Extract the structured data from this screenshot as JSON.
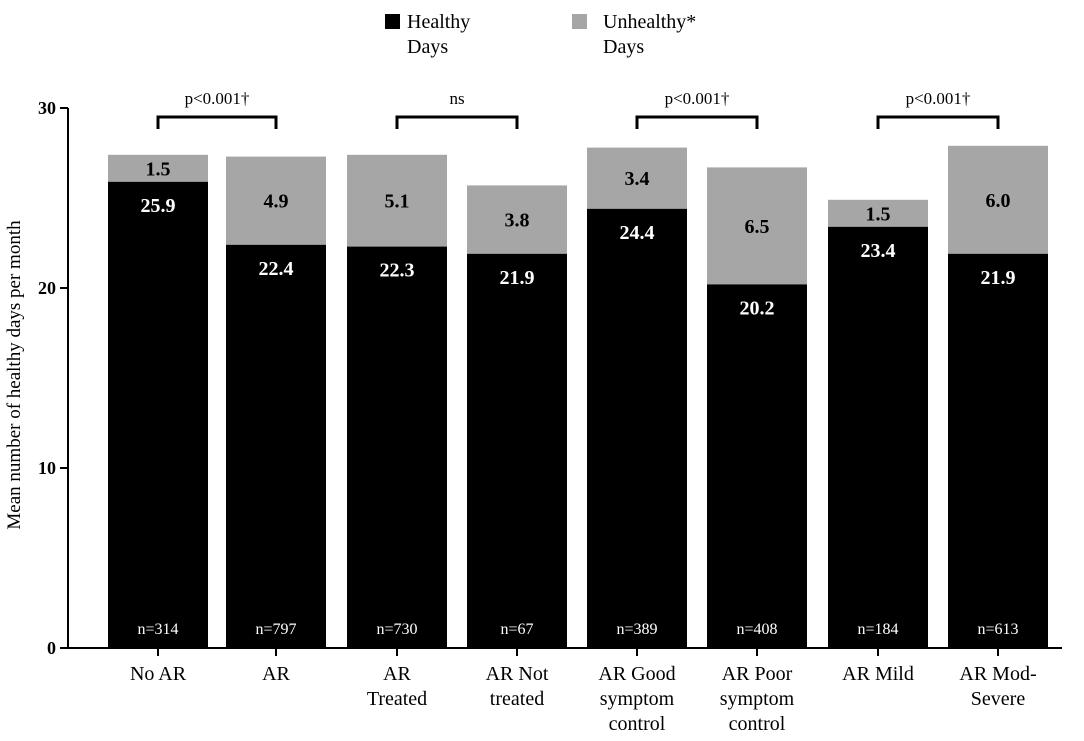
{
  "chart_data": {
    "type": "bar",
    "stacked": true,
    "ylabel": "Mean number of healthy days per month",
    "xlabel": "",
    "ylim": [
      0,
      30
    ],
    "yticks": [
      0,
      10,
      20,
      30
    ],
    "categories": [
      [
        "No AR"
      ],
      [
        "AR"
      ],
      [
        "AR",
        "Treated"
      ],
      [
        "AR Not",
        "treated"
      ],
      [
        "AR Good",
        "symptom",
        "control"
      ],
      [
        "AR Poor",
        "symptom",
        "control"
      ],
      [
        "AR Mild"
      ],
      [
        "AR Mod-",
        "Severe"
      ]
    ],
    "series": [
      {
        "name": "Healthy Days",
        "legend_lines": [
          "Healthy",
          "Days"
        ],
        "color": "#000000",
        "label_color": "#ffffff",
        "values": [
          25.9,
          22.4,
          22.3,
          21.9,
          24.4,
          20.2,
          23.4,
          21.9
        ],
        "labels": [
          "25.9",
          "22.4",
          "22.3",
          "21.9",
          "24.4",
          "20.2",
          "23.4",
          "21.9"
        ]
      },
      {
        "name": "Unhealthy* Days",
        "legend_lines": [
          "Unhealthy*",
          "Days"
        ],
        "color": "#a6a6a6",
        "label_color": "#000000",
        "values": [
          1.5,
          4.9,
          5.1,
          3.8,
          3.4,
          6.5,
          1.5,
          6.0
        ],
        "labels": [
          "1.5",
          "4.9",
          "5.1",
          "3.8",
          "3.4",
          "6.5",
          "1.5",
          "6.0"
        ]
      }
    ],
    "sample_sizes": [
      "n=314",
      "n=797",
      "n=730",
      "n=67",
      "n=389",
      "n=408",
      "n=184",
      "n=613"
    ],
    "comparisons": [
      {
        "pair": [
          0,
          1
        ],
        "label": "p<0.001†"
      },
      {
        "pair": [
          2,
          3
        ],
        "label": "ns"
      },
      {
        "pair": [
          4,
          5
        ],
        "label": "p<0.001†"
      },
      {
        "pair": [
          6,
          7
        ],
        "label": "p<0.001†"
      }
    ]
  }
}
